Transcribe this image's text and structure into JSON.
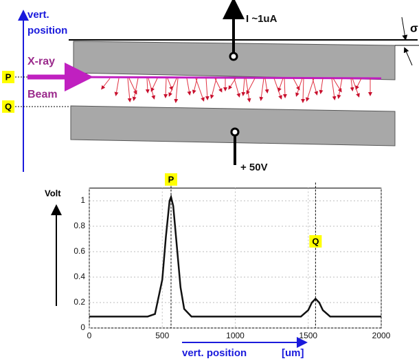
{
  "diagram": {
    "labels": {
      "position_top": "vert.",
      "position_bottom": "position",
      "current": "I ~1uA",
      "xray": "X-ray",
      "beam": "Beam",
      "p": "P",
      "q": "Q",
      "voltage": "+ 50V",
      "sigma": "σ"
    }
  },
  "chart_data": {
    "type": "line",
    "x": [
      0,
      100,
      200,
      300,
      400,
      450,
      500,
      525,
      550,
      560,
      575,
      600,
      625,
      650,
      700,
      750,
      800,
      900,
      1000,
      1100,
      1200,
      1300,
      1400,
      1450,
      1500,
      1525,
      1550,
      1575,
      1600,
      1650,
      1700,
      1800,
      1900,
      2000
    ],
    "series": [
      {
        "color": "#111111",
        "values": [
          0.09,
          0.09,
          0.09,
          0.09,
          0.09,
          0.11,
          0.38,
          0.72,
          1.0,
          1.03,
          0.96,
          0.64,
          0.32,
          0.15,
          0.09,
          0.09,
          0.09,
          0.09,
          0.09,
          0.09,
          0.09,
          0.09,
          0.09,
          0.09,
          0.14,
          0.2,
          0.23,
          0.2,
          0.14,
          0.09,
          0.09,
          0.09,
          0.09,
          0.09
        ]
      }
    ],
    "xlim": [
      0,
      2000
    ],
    "ylim": [
      0,
      1.1
    ],
    "xticks": [
      0,
      500,
      1000,
      1500,
      2000
    ],
    "yticks": [
      0,
      0.2,
      0.4,
      0.6,
      0.8,
      1
    ],
    "grid": true,
    "ylabel": "Volt",
    "xlabel": "vert. position",
    "xunit": "[um]",
    "annotations": [
      {
        "text": "P",
        "x": 560
      },
      {
        "text": "Q",
        "x": 1550
      }
    ]
  }
}
